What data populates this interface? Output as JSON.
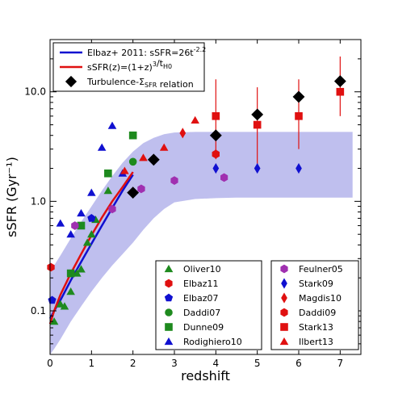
{
  "chart_data": {
    "type": "scatter",
    "title": "",
    "xlabel": "redshift",
    "ylabel": "sSFR (Gyr⁻¹)",
    "xlim": [
      0,
      7.5
    ],
    "ylim": [
      0.04,
      30
    ],
    "yscale": "log",
    "x_ticks": [
      0,
      1,
      2,
      3,
      4,
      5,
      6,
      7
    ],
    "x_tick_labels": [
      "0",
      "1",
      "2",
      "3",
      "4",
      "5",
      "6",
      "7"
    ],
    "y_ticks": [
      0.1,
      1.0,
      10.0
    ],
    "y_tick_labels": [
      "0.1",
      "1.0",
      "10.0"
    ],
    "band": {
      "color": "#a9a9e8",
      "x": [
        0,
        0.1,
        0.25,
        0.5,
        0.75,
        1.0,
        1.25,
        1.5,
        1.75,
        2.0,
        2.25,
        2.5,
        2.75,
        3.0,
        3.5,
        4.0,
        4.5,
        5.0,
        5.5,
        6.0,
        6.5,
        7.0,
        7.3
      ],
      "lower": [
        0.04,
        0.045,
        0.055,
        0.08,
        0.11,
        0.15,
        0.2,
        0.26,
        0.33,
        0.42,
        0.55,
        0.7,
        0.85,
        0.98,
        1.05,
        1.07,
        1.08,
        1.08,
        1.08,
        1.08,
        1.08,
        1.08,
        1.08
      ],
      "upper": [
        0.22,
        0.26,
        0.32,
        0.46,
        0.65,
        0.9,
        1.25,
        1.7,
        2.25,
        2.85,
        3.4,
        3.8,
        4.1,
        4.25,
        4.3,
        4.3,
        4.3,
        4.3,
        4.3,
        4.3,
        4.3,
        4.3,
        4.3
      ]
    },
    "series": [
      {
        "name": "Elbaz+ 2011: sSFR=26t",
        "superscript": "-2.2",
        "kind": "line",
        "color": "#1010d0",
        "x": [
          0,
          0.1,
          0.25,
          0.5,
          0.75,
          1.0,
          1.25,
          1.5,
          1.75,
          2.0
        ],
        "y": [
          0.085,
          0.1,
          0.125,
          0.19,
          0.28,
          0.41,
          0.6,
          0.87,
          1.25,
          1.75
        ]
      },
      {
        "name": "sSFR(z)=(1+z)",
        "superscript": "3",
        "name_suffix": "/t",
        "suffix_subscript": "H0",
        "kind": "line",
        "color": "#e01010",
        "x": [
          0,
          0.1,
          0.25,
          0.5,
          0.75,
          1.0,
          1.25,
          1.5,
          1.75,
          2.0
        ],
        "y": [
          0.076,
          0.1,
          0.14,
          0.22,
          0.33,
          0.49,
          0.71,
          1.0,
          1.35,
          1.85
        ]
      },
      {
        "name": "Turbulence-Σ",
        "name_subscript": "SFR",
        "name_suffix": " relation",
        "kind": "marker",
        "marker": "diamond",
        "color": "#000000",
        "x": [
          2.0,
          2.5,
          4.0,
          5.0,
          6.0,
          7.0
        ],
        "y": [
          1.2,
          2.4,
          4.0,
          6.2,
          9.0,
          12.5
        ]
      },
      {
        "name": "Oliver10",
        "kind": "marker",
        "marker": "triangle",
        "color": "#1e8a1e",
        "x": [
          0.1,
          0.25,
          0.35,
          0.5,
          0.65,
          0.75,
          0.9,
          1.0,
          1.1,
          1.4
        ],
        "y": [
          0.08,
          0.115,
          0.11,
          0.15,
          0.22,
          0.24,
          0.42,
          0.5,
          0.68,
          1.25
        ]
      },
      {
        "name": "Elbaz11",
        "kind": "marker",
        "marker": "hexagon",
        "color": "#e01010",
        "x": [
          0.02,
          4.0
        ],
        "y": [
          0.25,
          2.7
        ]
      },
      {
        "name": "Elbaz07",
        "kind": "marker",
        "marker": "pentagon",
        "color": "#1010d0",
        "x": [
          0.05,
          1.0
        ],
        "y": [
          0.125,
          0.7
        ]
      },
      {
        "name": "Daddi07",
        "kind": "marker",
        "marker": "circle",
        "color": "#1e8a1e",
        "x": [
          2.0
        ],
        "y": [
          2.3
        ]
      },
      {
        "name": "Dunne09",
        "kind": "marker",
        "marker": "square",
        "color": "#1e8a1e",
        "x": [
          0.5,
          0.75,
          1.4,
          2.0
        ],
        "y": [
          0.22,
          0.6,
          1.8,
          4.0
        ]
      },
      {
        "name": "Rodighiero10",
        "kind": "marker",
        "marker": "triangle",
        "color": "#1010d0",
        "x": [
          0.25,
          0.5,
          0.75,
          1.0,
          1.25,
          1.5,
          1.75
        ],
        "y": [
          0.63,
          0.5,
          0.78,
          1.2,
          3.1,
          4.9,
          1.8
        ]
      },
      {
        "name": "Feulner05",
        "kind": "marker",
        "marker": "hexagon",
        "color": "#a030b0",
        "x": [
          0.6,
          1.5,
          2.2,
          3.0,
          4.2
        ],
        "y": [
          0.6,
          0.85,
          1.3,
          1.55,
          1.65
        ]
      },
      {
        "name": "Stark09",
        "kind": "marker",
        "marker": "thin-diamond",
        "color": "#1010d0",
        "x": [
          4.0,
          5.0,
          6.0
        ],
        "y": [
          2.0,
          2.0,
          2.0
        ]
      },
      {
        "name": "Magdis10",
        "kind": "marker",
        "marker": "thin-diamond",
        "color": "#e01010",
        "x": [
          3.2,
          4.0
        ],
        "y": [
          4.2,
          2.7
        ]
      },
      {
        "name": "Daddi09",
        "kind": "marker",
        "marker": "hexagon",
        "color": "#e01010",
        "x": [
          4.0
        ],
        "y": [
          2.7
        ]
      },
      {
        "name": "Stark13",
        "kind": "marker",
        "marker": "square",
        "color": "#e01010",
        "x": [
          4.0,
          5.0,
          6.0,
          7.0
        ],
        "y": [
          6.0,
          5.0,
          6.0,
          10.0
        ],
        "y_err_low": [
          2.5,
          2.0,
          3.0,
          6.0
        ],
        "y_err_high": [
          13.0,
          11.0,
          13.0,
          21.0
        ]
      },
      {
        "name": "Ilbert13",
        "kind": "marker",
        "marker": "triangle",
        "color": "#e01010",
        "x": [
          1.8,
          2.25,
          2.75,
          3.5
        ],
        "y": [
          1.9,
          2.5,
          3.1,
          5.5
        ]
      }
    ],
    "legend_top": [
      "Elbaz+ 2011: sSFR=26t",
      "sSFR(z)=(1+z)",
      "Turbulence-Σ"
    ],
    "legend_top_position": "upper-left",
    "legend_left": [
      "Oliver10",
      "Elbaz11",
      "Elbaz07",
      "Daddi07",
      "Dunne09",
      "Rodighiero10"
    ],
    "legend_left_position": "lower-center",
    "legend_right": [
      "Feulner05",
      "Stark09",
      "Magdis10",
      "Daddi09",
      "Stark13",
      "Ilbert13"
    ],
    "legend_right_position": "lower-right",
    "grid": false
  }
}
